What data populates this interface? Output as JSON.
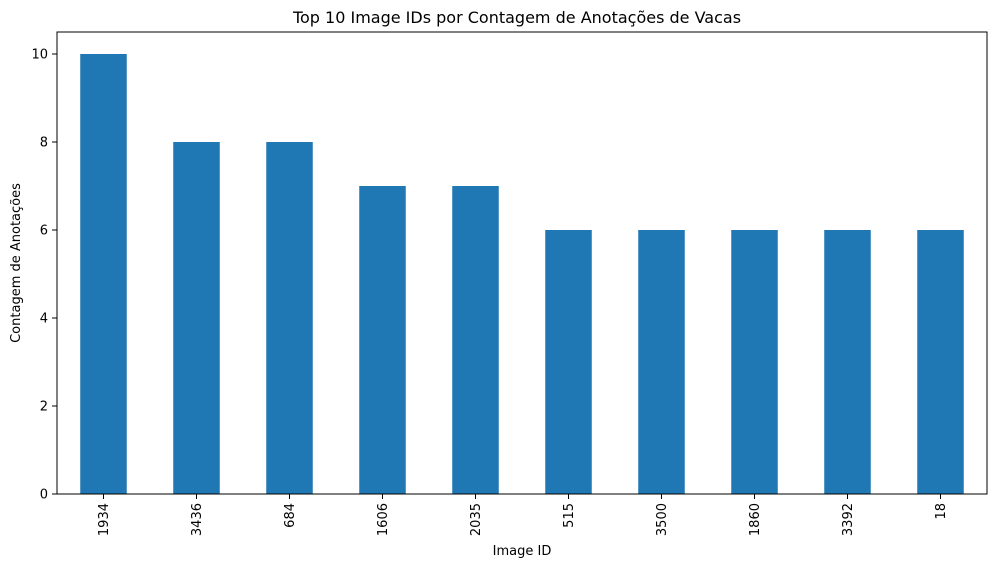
{
  "chart_data": {
    "type": "bar",
    "title": "Top 10 Image IDs por Contagem de Anotações de Vacas",
    "xlabel": "Image ID",
    "ylabel": "Contagem de Anotações",
    "categories": [
      "1934",
      "3436",
      "684",
      "1606",
      "2035",
      "515",
      "3500",
      "1860",
      "3392",
      "18"
    ],
    "values": [
      10,
      8,
      8,
      7,
      7,
      6,
      6,
      6,
      6,
      6
    ],
    "ylim": [
      0,
      10.5
    ],
    "yticks": [
      0,
      2,
      4,
      6,
      8,
      10
    ],
    "bar_color": "#1f77b4",
    "grid": false,
    "legend": "none"
  }
}
